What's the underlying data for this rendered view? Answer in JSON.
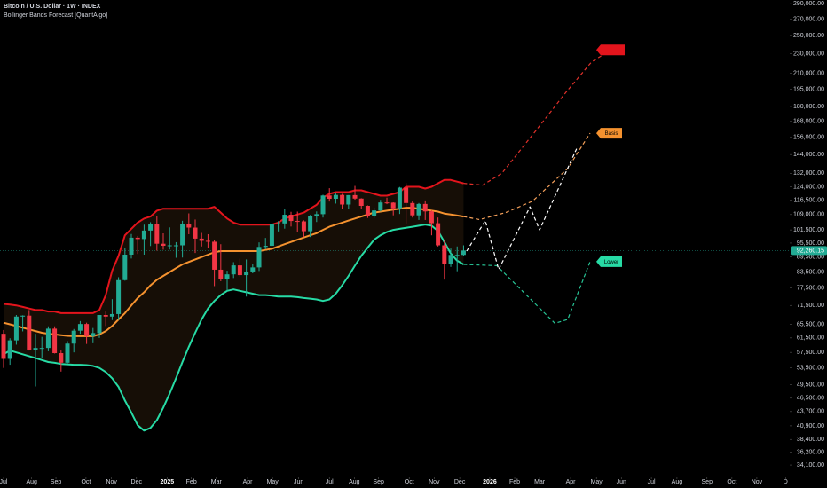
{
  "chart_data": {
    "type": "candlestick",
    "title": "Bitcoin / U.S. Dollar · 1W · INDEX",
    "subtitle": "Bollinger Bands Forecast [QuantAlgo]",
    "log_scale": true,
    "grid": false,
    "xlim": [
      -0.556,
      123.05
    ],
    "ylim": [
      32200,
      295000
    ],
    "xticks": [
      {
        "value": 0,
        "label": "Jul"
      },
      {
        "value": 4.4,
        "label": "Aug"
      },
      {
        "value": 8.2,
        "label": "Sep"
      },
      {
        "value": 12.9,
        "label": "Oct"
      },
      {
        "value": 16.9,
        "label": "Nov"
      },
      {
        "value": 20.8,
        "label": "Dec"
      },
      {
        "value": 25.6,
        "label": "2025"
      },
      {
        "value": 29.4,
        "label": "Feb"
      },
      {
        "value": 33.3,
        "label": "Mar"
      },
      {
        "value": 38.2,
        "label": "Apr"
      },
      {
        "value": 42.1,
        "label": "May"
      },
      {
        "value": 46.2,
        "label": "Jun"
      },
      {
        "value": 51,
        "label": "Jul"
      },
      {
        "value": 54.9,
        "label": "Aug"
      },
      {
        "value": 58.7,
        "label": "Sep"
      },
      {
        "value": 63.5,
        "label": "Oct"
      },
      {
        "value": 67.4,
        "label": "Nov"
      },
      {
        "value": 71.4,
        "label": "Dec"
      },
      {
        "value": 76.1,
        "label": "2026"
      },
      {
        "value": 80,
        "label": "Feb"
      },
      {
        "value": 83.9,
        "label": "Mar"
      },
      {
        "value": 88.75,
        "label": "Apr"
      },
      {
        "value": 92.8,
        "label": "May"
      },
      {
        "value": 96.7,
        "label": "Jun"
      },
      {
        "value": 101.4,
        "label": "Jul"
      },
      {
        "value": 105.4,
        "label": "Aug"
      },
      {
        "value": 110.1,
        "label": "Sep"
      },
      {
        "value": 114,
        "label": "Oct"
      },
      {
        "value": 117.9,
        "label": "Nov"
      },
      {
        "value": 122.4,
        "label": "D"
      }
    ],
    "yticks": [
      {
        "value": 290000,
        "label": "290,000.00"
      },
      {
        "value": 270000,
        "label": "270,000.00"
      },
      {
        "value": 250000,
        "label": "250,000.00"
      },
      {
        "value": 230000,
        "label": "230,000.00"
      },
      {
        "value": 210000,
        "label": "210,000.00"
      },
      {
        "value": 195000,
        "label": "195,000.00"
      },
      {
        "value": 180000,
        "label": "180,000.00"
      },
      {
        "value": 168000,
        "label": "168,000.00"
      },
      {
        "value": 156000,
        "label": "156,000.00"
      },
      {
        "value": 144000,
        "label": "144,000.00"
      },
      {
        "value": 132000,
        "label": "132,000.00"
      },
      {
        "value": 124000,
        "label": "124,000.00"
      },
      {
        "value": 116500,
        "label": "116,500.00"
      },
      {
        "value": 109000,
        "label": "109,000.00"
      },
      {
        "value": 101500,
        "label": "101,500.00"
      },
      {
        "value": 95500,
        "label": "95,500.00"
      },
      {
        "value": 89500,
        "label": "89,500.00"
      },
      {
        "value": 83500,
        "label": "83,500.00"
      },
      {
        "value": 77500,
        "label": "77,500.00"
      },
      {
        "value": 71500,
        "label": "71,500.00"
      },
      {
        "value": 65500,
        "label": "65,500.00"
      },
      {
        "value": 61500,
        "label": "61,500.00"
      },
      {
        "value": 57500,
        "label": "57,500.00"
      },
      {
        "value": 53500,
        "label": "53,500.00"
      },
      {
        "value": 49500,
        "label": "49,500.00"
      },
      {
        "value": 46500,
        "label": "46,500.00"
      },
      {
        "value": 43700,
        "label": "43,700.00"
      },
      {
        "value": 40900,
        "label": "40,900.00"
      },
      {
        "value": 38400,
        "label": "38,400.00"
      },
      {
        "value": 36200,
        "label": "36,200.00"
      },
      {
        "value": 34100,
        "label": "34,100.00"
      }
    ],
    "up_color": "#22ab94",
    "down_color": "#f23645",
    "band_fill": "#160e06",
    "x": [
      0,
      1,
      2,
      3,
      4,
      5,
      6,
      7,
      8,
      9,
      10,
      11,
      12,
      13,
      14,
      15,
      16,
      17,
      18,
      19,
      20,
      21,
      22,
      23,
      24,
      25,
      26,
      27,
      28,
      29,
      30,
      31,
      32,
      33,
      34,
      35,
      36,
      37,
      38,
      39,
      40,
      41,
      42,
      43,
      44,
      45,
      46,
      47,
      48,
      49,
      50,
      51,
      52,
      53,
      54,
      55,
      56,
      57,
      58,
      59,
      60,
      61,
      62,
      63,
      64,
      65,
      66,
      67,
      68,
      69,
      70,
      71,
      72
    ],
    "open": [
      62700,
      55800,
      60800,
      67900,
      68200,
      58100,
      58700,
      58700,
      64200,
      57300,
      54800,
      59900,
      63600,
      65600,
      62000,
      62900,
      68400,
      67900,
      68700,
      80400,
      90500,
      97900,
      97300,
      101200,
      104400,
      95200,
      94300,
      94500,
      94500,
      104500,
      102600,
      97500,
      96500,
      96100,
      84400,
      80700,
      82600,
      86100,
      82300,
      83700,
      85300,
      93800,
      94300,
      104200,
      104600,
      108900,
      105800,
      105600,
      100900,
      108400,
      109200,
      119100,
      117300,
      119400,
      114200,
      119300,
      117400,
      113500,
      108300,
      111100,
      115300,
      115200,
      112200,
      123500,
      115000,
      108600,
      114500,
      110600,
      104700,
      94500,
      86800,
      90400,
      90400
    ],
    "high": [
      63800,
      61400,
      68400,
      68300,
      70000,
      62700,
      61800,
      64900,
      64900,
      58000,
      60600,
      64100,
      66500,
      66000,
      64400,
      68400,
      69500,
      73600,
      81500,
      93300,
      99600,
      98700,
      104000,
      105200,
      108300,
      99900,
      102700,
      95900,
      105900,
      109600,
      106500,
      100100,
      99500,
      97000,
      95000,
      84000,
      87400,
      88800,
      88500,
      86500,
      95800,
      97800,
      104500,
      105700,
      112000,
      110400,
      110500,
      106100,
      108800,
      110600,
      119500,
      123200,
      120200,
      120000,
      119300,
      124500,
      117600,
      113700,
      112600,
      116700,
      117900,
      115400,
      123900,
      126200,
      116000,
      115000,
      116400,
      111200,
      107500,
      96600,
      93100,
      94000,
      94500
    ],
    "low": [
      53500,
      54300,
      59600,
      63400,
      58000,
      49100,
      56100,
      57800,
      57200,
      52600,
      54600,
      57500,
      62700,
      59800,
      60000,
      61500,
      65000,
      66800,
      66800,
      80200,
      88900,
      90800,
      90500,
      94200,
      92200,
      92600,
      92700,
      89200,
      89300,
      99500,
      91200,
      94000,
      93400,
      78200,
      80000,
      76600,
      81200,
      81600,
      74500,
      83000,
      83900,
      92800,
      94100,
      100800,
      102100,
      103100,
      100400,
      98200,
      98200,
      105300,
      107500,
      115800,
      114700,
      112000,
      111900,
      116800,
      111700,
      107300,
      107300,
      110600,
      114400,
      108600,
      109300,
      104600,
      107500,
      106300,
      106300,
      99000,
      94000,
      80600,
      85500,
      83800,
      89800
    ],
    "close": [
      55800,
      60800,
      67900,
      68200,
      58100,
      58700,
      58700,
      64200,
      57300,
      54800,
      59900,
      63600,
      65600,
      62000,
      62900,
      68400,
      67900,
      68700,
      80400,
      90500,
      97900,
      97300,
      101200,
      104400,
      95200,
      94300,
      94500,
      94500,
      104500,
      102600,
      97500,
      96500,
      96100,
      84400,
      80700,
      82600,
      86100,
      82300,
      83700,
      85300,
      93800,
      94300,
      104200,
      104600,
      108900,
      105800,
      105600,
      100900,
      108400,
      109200,
      119100,
      117300,
      119400,
      114200,
      119300,
      117400,
      113500,
      108300,
      111100,
      115300,
      115200,
      112200,
      123500,
      115000,
      108600,
      114500,
      110600,
      104700,
      94500,
      86800,
      90400,
      90400,
      92260.15
    ],
    "last_price_label": "92,260.15",
    "series": [
      {
        "color": "#e3141c",
        "values": [
          72000,
          71800,
          71500,
          71000,
          70500,
          70000,
          70000,
          69500,
          69500,
          69000,
          69000,
          69000,
          69000,
          69000,
          69000,
          70000,
          75000,
          84000,
          90000,
          99000,
          102000,
          105000,
          107000,
          108000,
          111000,
          112000,
          112000,
          112000,
          112000,
          112000,
          112000,
          112000,
          112000,
          113000,
          110000,
          107000,
          105000,
          104000,
          104000,
          104000,
          104000,
          104000,
          104000,
          105000,
          107000,
          108000,
          109000,
          110000,
          112000,
          114000,
          118000,
          120000,
          121000,
          121000,
          121000,
          122000,
          122000,
          121000,
          120000,
          119000,
          119000,
          120000,
          121000,
          124000,
          124000,
          124000,
          123000,
          124000,
          126000,
          128000,
          128000,
          127000,
          126000
        ]
      },
      {
        "name": "Basis",
        "color": "#f5922f",
        "values": [
          66000,
          65500,
          65000,
          64500,
          64000,
          63500,
          63000,
          62700,
          62500,
          62300,
          62100,
          62000,
          62000,
          62000,
          62000,
          62500,
          63500,
          65000,
          67000,
          69000,
          71500,
          74000,
          76000,
          78500,
          80500,
          82000,
          83500,
          85000,
          86500,
          87500,
          88500,
          89500,
          90500,
          91500,
          92000,
          92000,
          92000,
          92000,
          92000,
          92000,
          92000,
          92500,
          93000,
          94000,
          95000,
          96000,
          97000,
          98000,
          99000,
          100000,
          101500,
          103000,
          104000,
          105000,
          106000,
          107000,
          108000,
          109000,
          110000,
          110500,
          111000,
          111500,
          112000,
          112500,
          112500,
          112000,
          111500,
          111000,
          110500,
          109500,
          109000,
          108500,
          108000
        ]
      },
      {
        "name": "Lower",
        "color": "#27dba5",
        "values": [
          57000,
          58000,
          57500,
          57000,
          56500,
          56000,
          55500,
          55000,
          54800,
          54500,
          54400,
          54300,
          54300,
          54200,
          54000,
          53500,
          52500,
          51000,
          49000,
          46000,
          43500,
          41000,
          40000,
          40500,
          42000,
          44500,
          47500,
          51000,
          55000,
          59000,
          63000,
          67000,
          70500,
          73000,
          75000,
          76500,
          77000,
          76500,
          76000,
          75500,
          75000,
          75000,
          74800,
          74500,
          74500,
          74500,
          74300,
          74000,
          73800,
          73500,
          73000,
          73500,
          75500,
          78500,
          82000,
          86000,
          90000,
          93500,
          97000,
          99000,
          100500,
          101500,
          102000,
          102500,
          103000,
          103500,
          104000,
          103500,
          101000,
          96000,
          91000,
          88000,
          86500
        ]
      }
    ],
    "forecast": [
      {
        "color": "#e0302a",
        "x": [
          72,
          75,
          78,
          83,
          88,
          92,
          95
        ],
        "values": [
          126000,
          125000,
          132000,
          159000,
          192000,
          221000,
          234000
        ]
      },
      {
        "color": "#f5a05a",
        "x": [
          72,
          74.5,
          78.6,
          82.8,
          88.3,
          91.8
        ],
        "values": [
          108000,
          106500,
          110000,
          116000,
          135000,
          159000
        ]
      },
      {
        "color": "#27c495",
        "x": [
          72,
          77.2,
          81.4,
          86.3,
          88.3,
          91.8
        ],
        "values": [
          86500,
          86000,
          76000,
          65800,
          67000,
          87600
        ]
      },
      {
        "color": "#ffffff",
        "x": [
          72.5,
          75.4,
          77.5,
          82.4,
          83.9,
          89.7
        ],
        "values": [
          92000,
          106000,
          84500,
          113000,
          101500,
          148000
        ]
      }
    ]
  }
}
